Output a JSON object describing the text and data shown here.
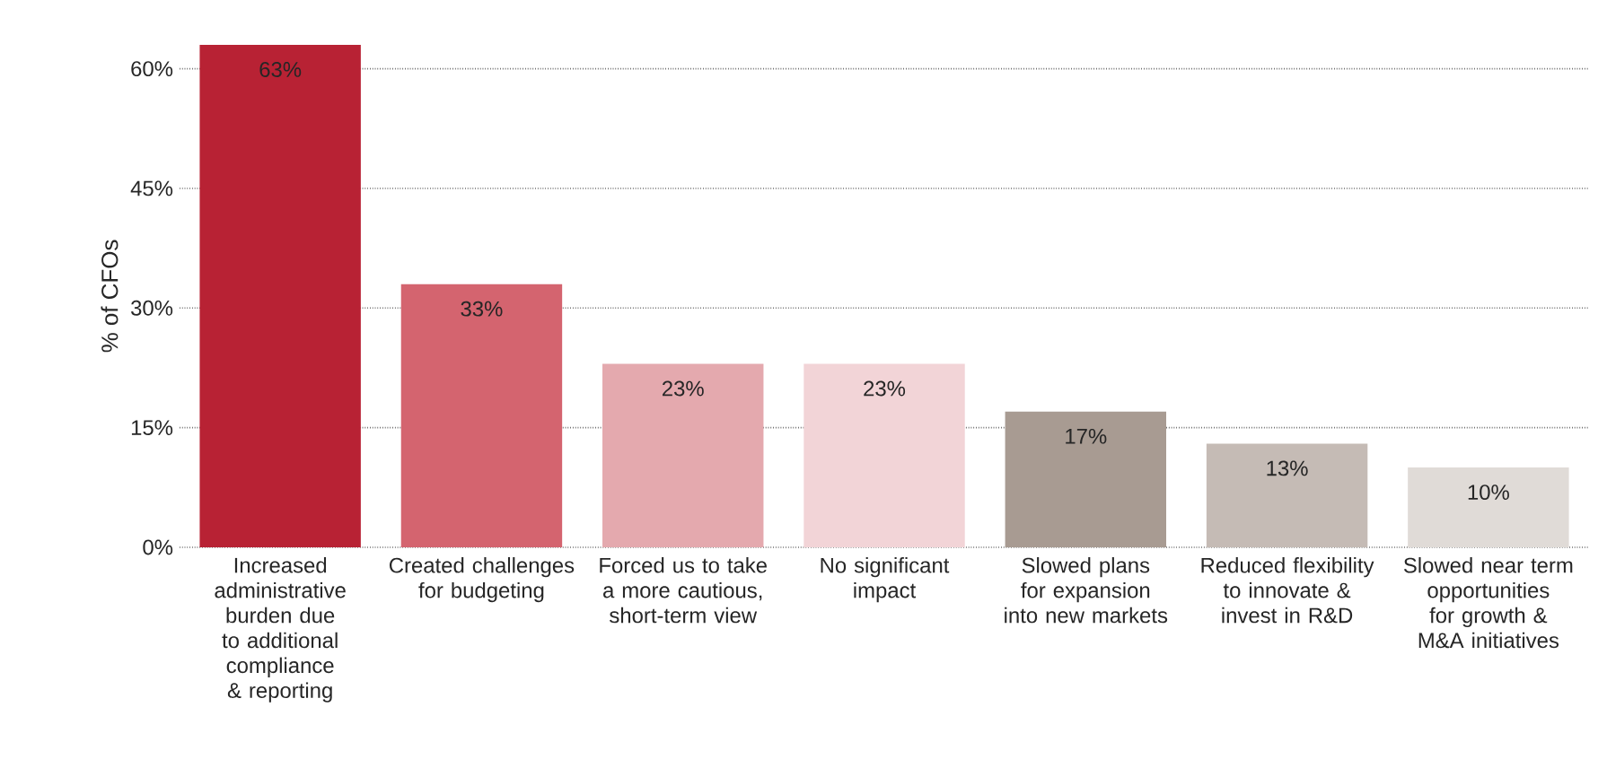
{
  "chart_data": {
    "type": "bar",
    "ylabel": "% of CFOs",
    "categories": [
      "Increased administrative burden due to additional compliance & reporting",
      "Created challenges for budgeting",
      "Forced us to take a more cautious, short-term view",
      "No significant impact",
      "Slowed plans for expansion into new markets",
      "Reduced flexibility to innovate & invest in R&D",
      "Slowed near term opportunities for growth & M&A initiatives"
    ],
    "values": [
      63,
      33,
      23,
      23,
      17,
      13,
      10
    ],
    "value_labels": [
      "63%",
      "33%",
      "23%",
      "23%",
      "17%",
      "13%",
      "10%"
    ],
    "colors": [
      "#b82234",
      "#d4646f",
      "#e4a9ae",
      "#f2d4d7",
      "#a89b92",
      "#c5bbb5",
      "#e0dbd7"
    ],
    "ylim": [
      0,
      63
    ],
    "yticks": [
      {
        "value": 0,
        "label": "0%"
      },
      {
        "value": 15,
        "label": "15%"
      },
      {
        "value": 30,
        "label": "30%"
      },
      {
        "value": 45,
        "label": "45%"
      },
      {
        "value": 60,
        "label": "60%"
      }
    ],
    "grid": "y"
  }
}
